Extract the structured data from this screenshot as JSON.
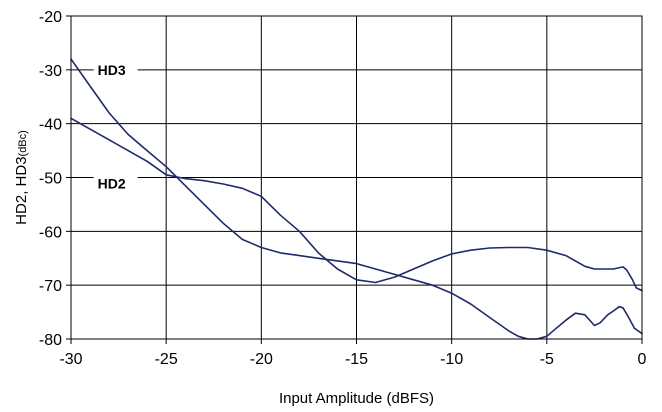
{
  "chart_data": {
    "type": "line",
    "title": "",
    "xlabel": "Input Amplitude (dBFS)",
    "ylabel": "HD2, HD3",
    "ylabel_unit": "(dBc)",
    "xlim": [
      -30,
      0
    ],
    "ylim": [
      -80,
      -20
    ],
    "xticks": [
      -30,
      -25,
      -20,
      -15,
      -10,
      -5,
      0
    ],
    "yticks": [
      -20,
      -30,
      -40,
      -50,
      -60,
      -70,
      -80
    ],
    "grid": true,
    "legend": "none",
    "annotations": [
      {
        "text": "HD3",
        "x": -28.6,
        "y": -31
      },
      {
        "text": "HD2",
        "x": -28.6,
        "y": -52
      }
    ],
    "series": [
      {
        "name": "HD3",
        "color": "#1f2a6b",
        "x": [
          -30,
          -29,
          -28,
          -27,
          -26,
          -25,
          -24,
          -23,
          -22,
          -21,
          -20,
          -19,
          -18,
          -17,
          -16,
          -15,
          -14,
          -13,
          -12,
          -11,
          -10,
          -9,
          -8,
          -7,
          -6.5,
          -6,
          -5.5,
          -5,
          -4.5,
          -4,
          -3.5,
          -3,
          -2.5,
          -2.2,
          -1.8,
          -1.5,
          -1.2,
          -1,
          -0.7,
          -0.4,
          0
        ],
        "y": [
          -28,
          -33,
          -38,
          -42,
          -45,
          -48,
          -51.5,
          -55,
          -58.5,
          -61.5,
          -63,
          -64,
          -64.5,
          -65,
          -65.5,
          -66,
          -67,
          -68,
          -69,
          -70,
          -71.5,
          -73.5,
          -76,
          -78.5,
          -79.5,
          -80,
          -80,
          -79.5,
          -78,
          -76.5,
          -75.2,
          -75.5,
          -77.5,
          -77,
          -75.5,
          -74.8,
          -74,
          -74.2,
          -76,
          -78,
          -79
        ]
      },
      {
        "name": "HD2",
        "color": "#1f2a6b",
        "x": [
          -30,
          -29,
          -28,
          -27,
          -26,
          -25,
          -24,
          -23,
          -22,
          -21,
          -20,
          -19,
          -18,
          -17,
          -16,
          -15,
          -14,
          -13,
          -12,
          -11,
          -10,
          -9,
          -8,
          -7,
          -6,
          -5,
          -4,
          -3.5,
          -3,
          -2.5,
          -2,
          -1.5,
          -1,
          -0.8,
          -0.5,
          -0.3,
          0
        ],
        "y": [
          -39,
          -41,
          -43,
          -45,
          -47,
          -49.5,
          -50.2,
          -50.6,
          -51.2,
          -52,
          -53.5,
          -57,
          -60,
          -64,
          -67,
          -69,
          -69.5,
          -68.5,
          -67,
          -65.5,
          -64.2,
          -63.5,
          -63.1,
          -63,
          -63,
          -63.5,
          -64.5,
          -65.5,
          -66.5,
          -67,
          -67,
          -67,
          -66.6,
          -67.2,
          -69,
          -70.5,
          -71
        ]
      }
    ]
  }
}
